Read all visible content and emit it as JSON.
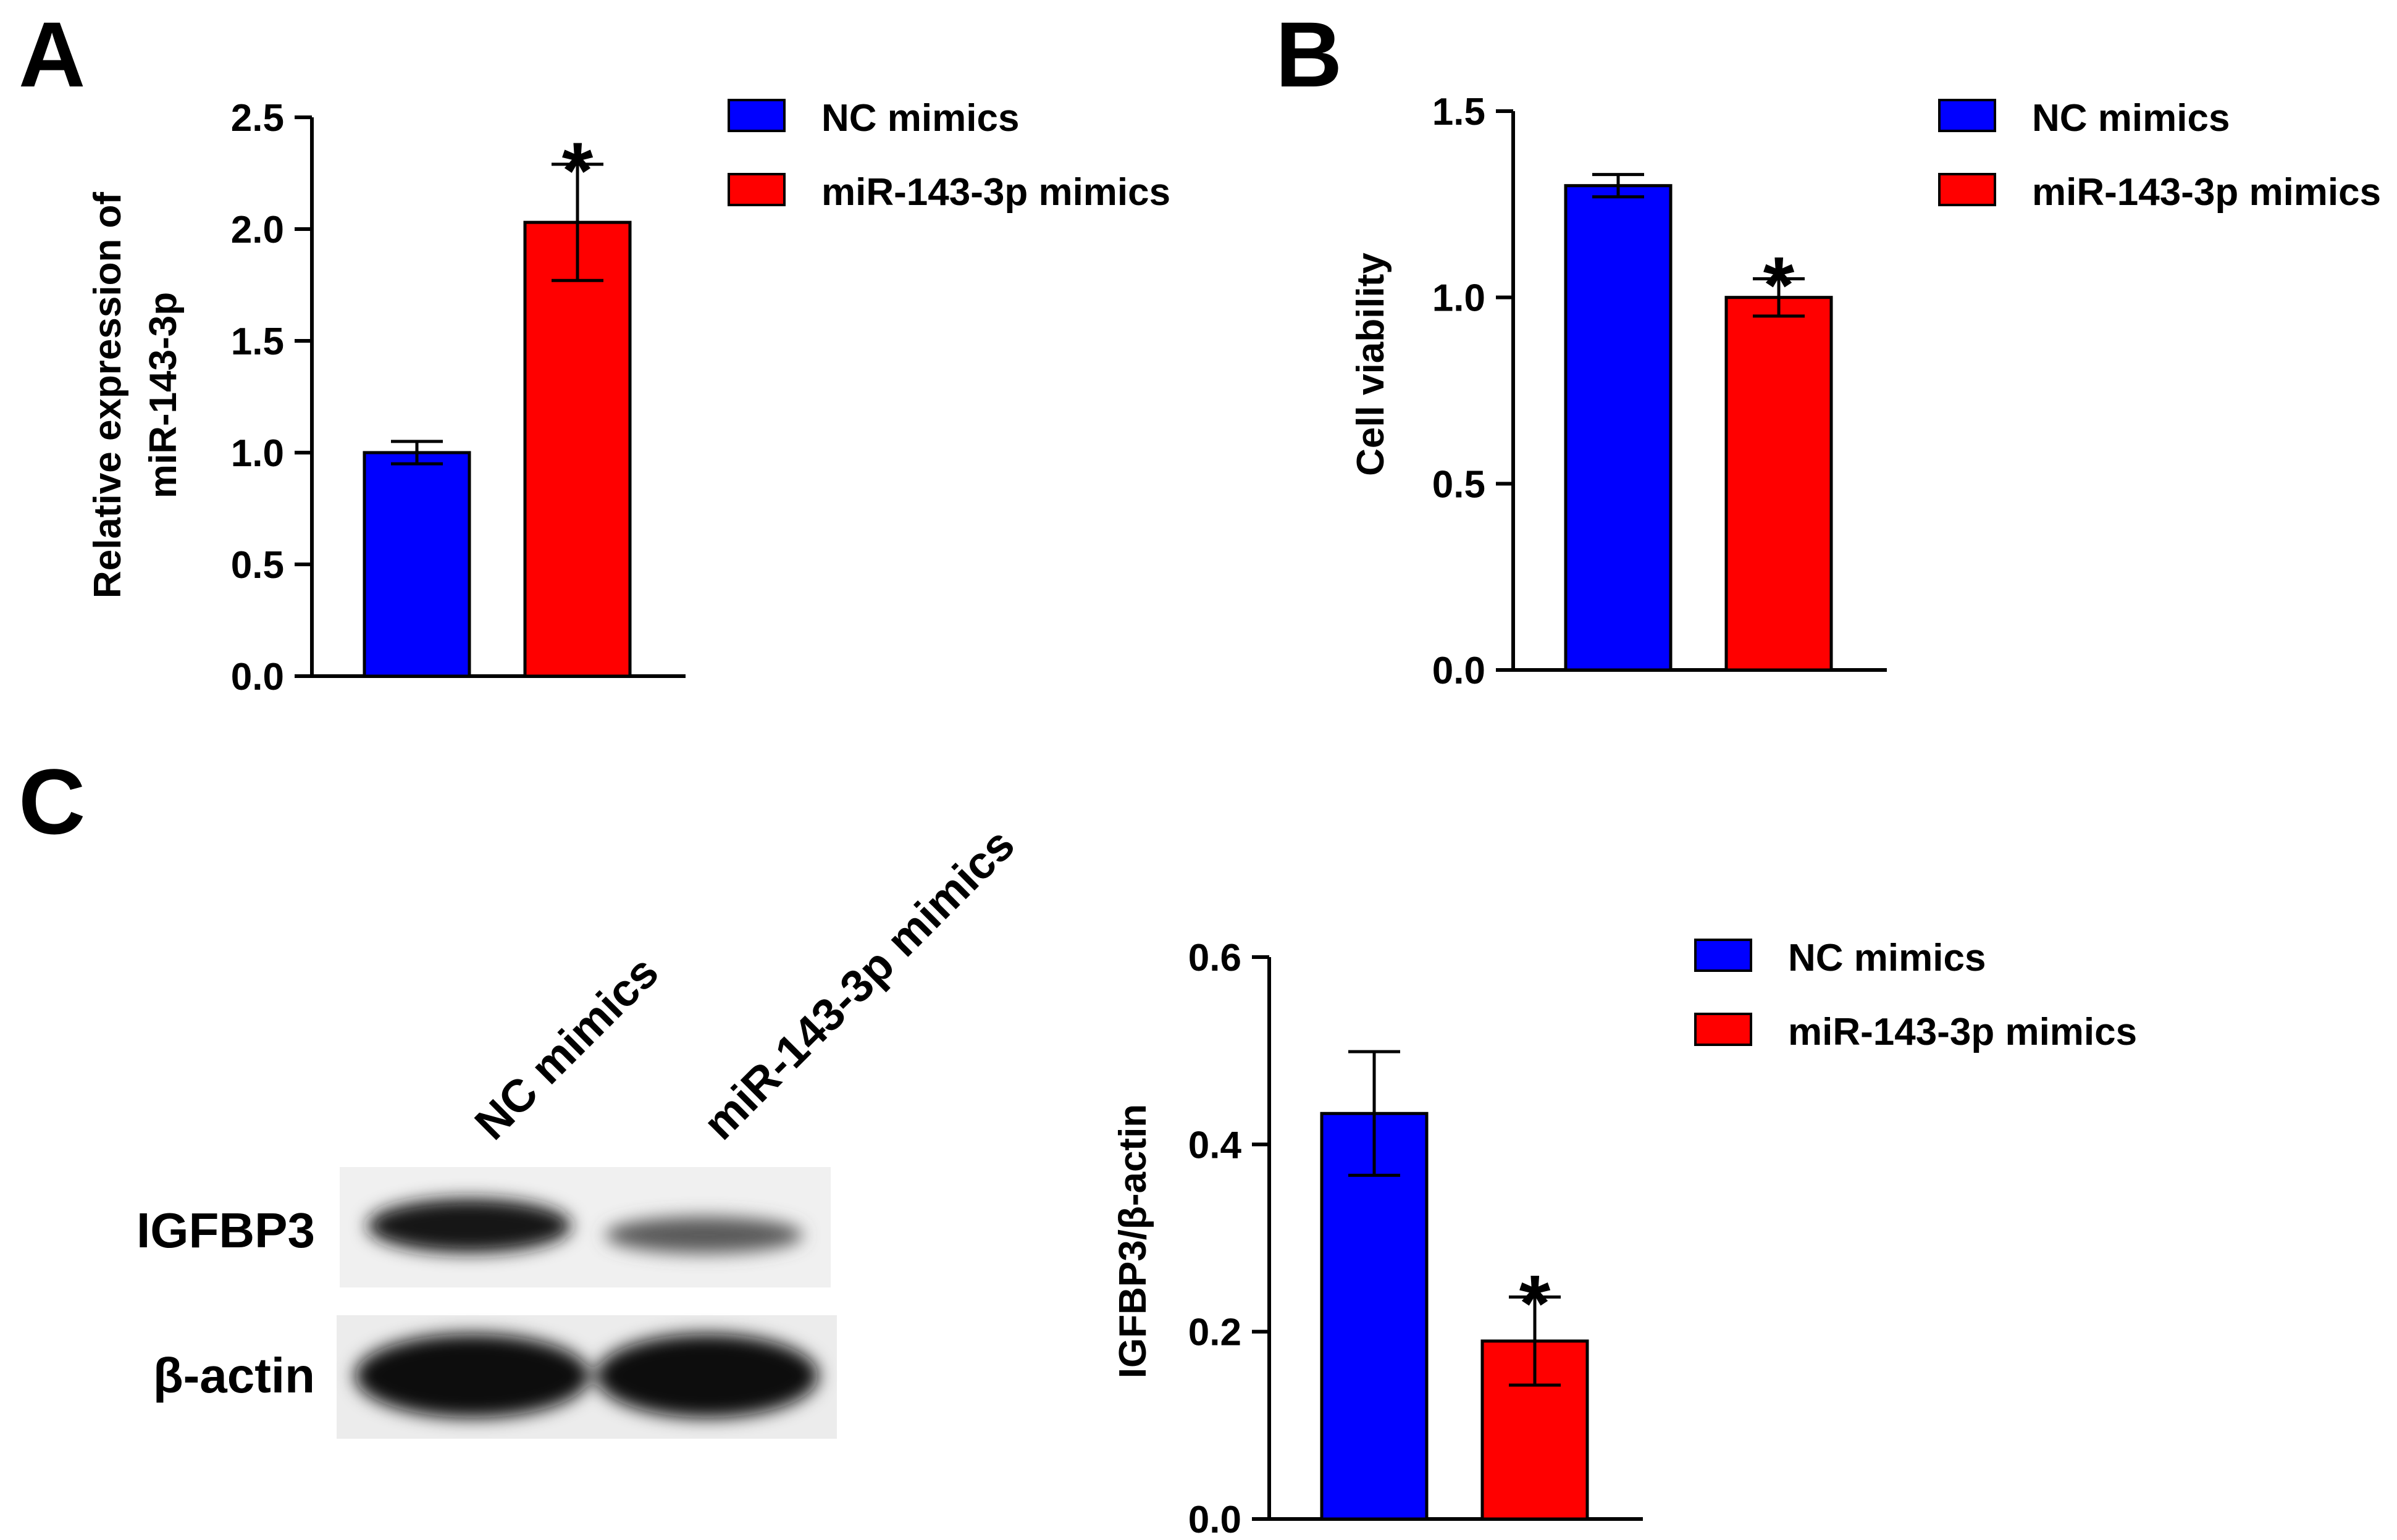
{
  "panels": {
    "a": {
      "letter": "A"
    },
    "b": {
      "letter": "B"
    },
    "c": {
      "letter": "C"
    }
  },
  "blot": {
    "lanes": [
      "NC mimics",
      "miR-143-3p mimics"
    ],
    "bands": [
      "IGFBP3",
      "β-actin"
    ],
    "intensity": {
      "IGFBP3": [
        0.9,
        0.45
      ],
      "β-actin": [
        1.0,
        1.0
      ]
    }
  },
  "colors": {
    "nc": "#0000ff",
    "mir": "#ff0000",
    "axis": "#000000"
  },
  "chart_data": [
    {
      "type": "bar",
      "panel": "A",
      "categories": [
        "NC mimics",
        "miR-143-3p mimics"
      ],
      "values": [
        1.0,
        2.03
      ],
      "errors": [
        0.05,
        0.26
      ],
      "significance": [
        "",
        "*"
      ],
      "ylabel": [
        "Relative expression of",
        "miR-143-3p"
      ],
      "ylim": [
        0,
        2.5
      ],
      "yticks": [
        "0.0",
        "0.5",
        "1.0",
        "1.5",
        "2.0",
        "2.5"
      ],
      "legend": [
        "NC mimics",
        "miR-143-3p mimics"
      ],
      "legend_position": "top-right",
      "grid": false
    },
    {
      "type": "bar",
      "panel": "B",
      "categories": [
        "NC mimics",
        "miR-143-3p mimics"
      ],
      "values": [
        1.3,
        1.0
      ],
      "errors": [
        0.03,
        0.05
      ],
      "significance": [
        "",
        "*"
      ],
      "ylabel": [
        "Cell viability"
      ],
      "ylim": [
        0,
        1.5
      ],
      "yticks": [
        "0.0",
        "0.5",
        "1.0",
        "1.5"
      ],
      "legend": [
        "NC mimics",
        "miR-143-3p mimics"
      ],
      "legend_position": "top-right",
      "grid": false
    },
    {
      "type": "bar",
      "panel": "C",
      "categories": [
        "NC mimics",
        "miR-143-3p mimics"
      ],
      "values": [
        0.433,
        0.19
      ],
      "errors": [
        0.066,
        0.047
      ],
      "significance": [
        "",
        "*"
      ],
      "ylabel": [
        "IGFBP3/β-actin"
      ],
      "ylim": [
        0,
        0.6
      ],
      "yticks": [
        "0.0",
        "0.2",
        "0.4",
        "0.6"
      ],
      "legend": [
        "NC mimics",
        "miR-143-3p mimics"
      ],
      "legend_position": "top-right",
      "grid": false
    }
  ]
}
